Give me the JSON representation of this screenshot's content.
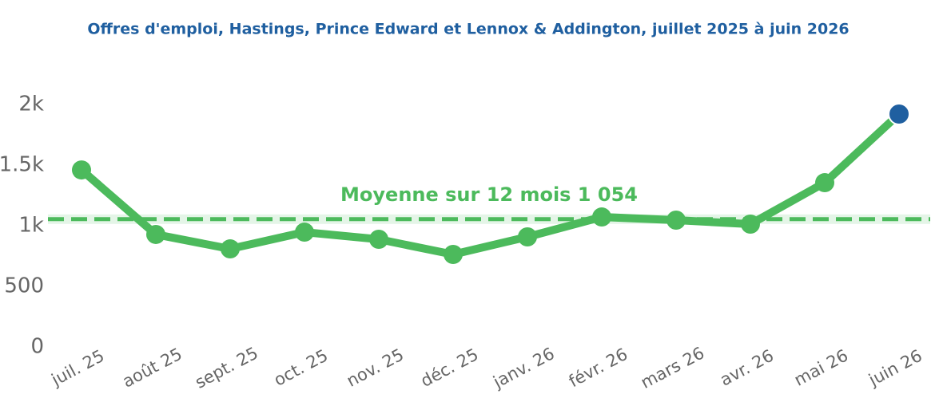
{
  "chart_data": {
    "type": "line",
    "title": "Offres d'emploi, Hastings, Prince Edward et Lennox & Addington, juillet 2025 à juin 2026",
    "categories": [
      "juil. 25",
      "août 25",
      "sept. 25",
      "oct. 25",
      "nov. 25",
      "déc. 25",
      "janv. 26",
      "févr. 26",
      "mars 26",
      "avr. 26",
      "mai 26",
      "juin 26"
    ],
    "series": [
      {
        "name": "Offres d'emploi",
        "color": "#4cba5c",
        "values": [
          1460,
          928,
          809,
          947,
          888,
          763,
          908,
          1072,
          1046,
          1013,
          1355,
          1921
        ]
      }
    ],
    "highlight_color": "#1f5fa0",
    "average_line": {
      "value": 1054,
      "label": "Moyenne sur 12 mois  1 054"
    },
    "ylim": [
      0,
      2000
    ],
    "yticks": [
      0,
      500,
      {
        "value": 1000,
        "label": "1k"
      },
      {
        "value": 1500,
        "label": "1.5k"
      },
      {
        "value": 2000,
        "label": "2k"
      }
    ]
  }
}
